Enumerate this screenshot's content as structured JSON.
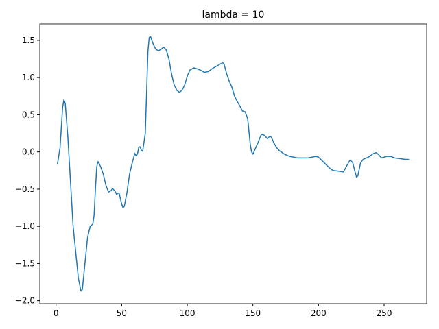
{
  "chart_data": {
    "type": "line",
    "title": "lambda = 10",
    "x": [
      1,
      3,
      5,
      6,
      7,
      9,
      11,
      13,
      15,
      17,
      19,
      20,
      22,
      24,
      26,
      28,
      29,
      30,
      31,
      32,
      34,
      36,
      38,
      40,
      42,
      43,
      45,
      46,
      48,
      50,
      51,
      52,
      54,
      56,
      58,
      60,
      61,
      62,
      63,
      64,
      65,
      66,
      68,
      70,
      71,
      72,
      74,
      76,
      78,
      80,
      82,
      84,
      86,
      88,
      90,
      92,
      94,
      96,
      98,
      100,
      102,
      105,
      107,
      110,
      113,
      116,
      119,
      122,
      125,
      127,
      128,
      130,
      132,
      134,
      136,
      138,
      140,
      142,
      144,
      146,
      148,
      149,
      150,
      152,
      154,
      156,
      157,
      159,
      161,
      163,
      164,
      166,
      168,
      170,
      174,
      178,
      184,
      192,
      198,
      200,
      204,
      208,
      211,
      216,
      219,
      222,
      224,
      226,
      228,
      229,
      230,
      232,
      234,
      238,
      242,
      244,
      246,
      248,
      250,
      252,
      255,
      258,
      262,
      266,
      269
    ],
    "series": [
      {
        "color": "#1f77b4",
        "values": [
          -0.17,
          0.05,
          0.6,
          0.7,
          0.65,
          0.2,
          -0.4,
          -1.0,
          -1.35,
          -1.7,
          -1.87,
          -1.85,
          -1.5,
          -1.15,
          -1.0,
          -0.97,
          -0.85,
          -0.5,
          -0.2,
          -0.13,
          -0.2,
          -0.3,
          -0.45,
          -0.54,
          -0.52,
          -0.49,
          -0.53,
          -0.57,
          -0.55,
          -0.7,
          -0.75,
          -0.73,
          -0.55,
          -0.3,
          -0.15,
          -0.02,
          -0.05,
          -0.03,
          0.06,
          0.07,
          0.02,
          0.01,
          0.25,
          1.35,
          1.54,
          1.55,
          1.45,
          1.38,
          1.36,
          1.38,
          1.41,
          1.37,
          1.25,
          1.05,
          0.9,
          0.83,
          0.8,
          0.83,
          0.9,
          1.02,
          1.1,
          1.13,
          1.12,
          1.1,
          1.07,
          1.08,
          1.12,
          1.15,
          1.18,
          1.2,
          1.18,
          1.05,
          0.95,
          0.87,
          0.75,
          0.68,
          0.62,
          0.55,
          0.54,
          0.45,
          0.1,
          0.0,
          -0.03,
          0.05,
          0.13,
          0.22,
          0.24,
          0.22,
          0.18,
          0.21,
          0.2,
          0.12,
          0.06,
          0.02,
          -0.03,
          -0.06,
          -0.08,
          -0.08,
          -0.06,
          -0.07,
          -0.14,
          -0.21,
          -0.25,
          -0.26,
          -0.27,
          -0.17,
          -0.11,
          -0.14,
          -0.28,
          -0.34,
          -0.32,
          -0.15,
          -0.1,
          -0.07,
          -0.02,
          -0.01,
          -0.04,
          -0.08,
          -0.07,
          -0.06,
          -0.06,
          -0.08,
          -0.09,
          -0.1,
          -0.1
        ]
      }
    ],
    "xlim": [
      -12.4,
      282.4
    ],
    "ylim": [
      -2.04,
      1.72
    ],
    "xticks": [
      0,
      50,
      100,
      150,
      200,
      250
    ],
    "yticks": [
      {
        "value": -2,
        "label": "−2.0"
      },
      {
        "value": -1.5,
        "label": "−1.5"
      },
      {
        "value": -1,
        "label": "−1.0"
      },
      {
        "value": -0.5,
        "label": "−0.5"
      },
      {
        "value": 0,
        "label": "0.0"
      },
      {
        "value": 0.5,
        "label": "0.5"
      },
      {
        "value": 1,
        "label": "1.0"
      },
      {
        "value": 1.5,
        "label": "1.5"
      }
    ]
  }
}
